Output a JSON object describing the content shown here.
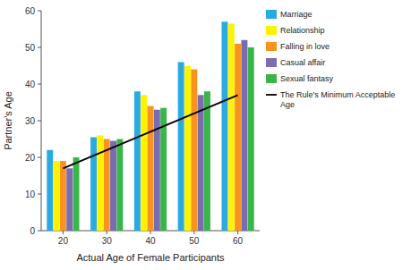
{
  "chart_data": {
    "type": "bar",
    "x_label": "Actual Age of Female Participants",
    "y_label": "Partner's Age",
    "categories": [
      20,
      30,
      40,
      50,
      60
    ],
    "series": [
      {
        "name": "Marriage",
        "color": "#29ABE2",
        "values": [
          22,
          25.5,
          38,
          46,
          57
        ]
      },
      {
        "name": "Relationship",
        "color": "#FFF200",
        "values": [
          19,
          26,
          37,
          45,
          56.5
        ]
      },
      {
        "name": "Falling in love",
        "color": "#F7941D",
        "values": [
          19,
          25,
          34,
          44,
          51
        ]
      },
      {
        "name": "Casual affair",
        "color": "#7B6BB0",
        "values": [
          17,
          24.5,
          33,
          37,
          52
        ]
      },
      {
        "name": "Sexual fantasy",
        "color": "#39B54A",
        "values": [
          20,
          25,
          33.5,
          38,
          50
        ]
      },
      {
        "name": "The Rule's Minimum Acceptable\nAge",
        "type": "line",
        "color": "#000000",
        "x": [
          20,
          60
        ],
        "values": [
          17,
          37
        ]
      }
    ],
    "ylim": [
      0,
      60
    ],
    "yticks": [
      0,
      10,
      20,
      30,
      40,
      50,
      60
    ],
    "grid": false,
    "legend": "right"
  }
}
